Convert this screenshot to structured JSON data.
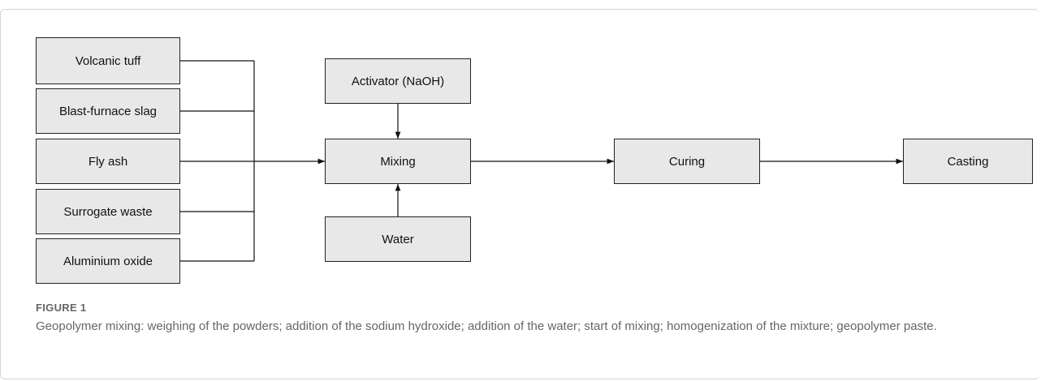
{
  "nodes": [
    {
      "label": "Volcanic tuff"
    },
    {
      "label": "Blast-furnace slag"
    },
    {
      "label": "Fly ash"
    },
    {
      "label": "Surrogate waste"
    },
    {
      "label": "Aluminium oxide"
    },
    {
      "label": "Activator (NaOH)"
    },
    {
      "label": "Mixing"
    },
    {
      "label": "Water"
    },
    {
      "label": "Curing"
    },
    {
      "label": "Casting"
    }
  ],
  "figure": {
    "label": "FIGURE 1",
    "caption": "Geopolymer mixing: weighing of the powders; addition of the sodium hydroxide; addition of the water; start of mixing; homogenization of the mixture; geopolymer paste."
  }
}
